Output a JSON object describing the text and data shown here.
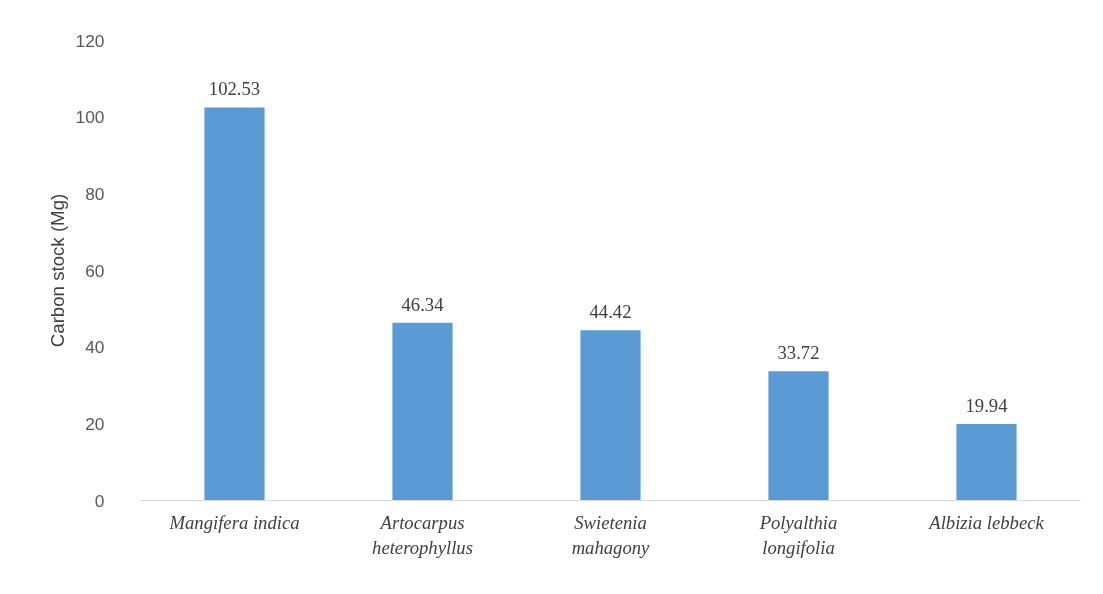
{
  "chart_data": {
    "type": "bar",
    "ylabel": "Carbon stock (Mg)",
    "categories": [
      "Mangifera indica",
      "Artocarpus heterophyllus",
      "Swietenia mahagony",
      "Polyalthia longifolia",
      "Albizia lebbeck"
    ],
    "values": [
      102.53,
      46.34,
      44.42,
      33.72,
      19.94
    ],
    "color": "#5b9bd5",
    "ylim": [
      0,
      120
    ],
    "yticks": [
      0,
      20,
      40,
      60,
      80,
      100,
      120
    ],
    "grid": false,
    "data_labels": true
  }
}
